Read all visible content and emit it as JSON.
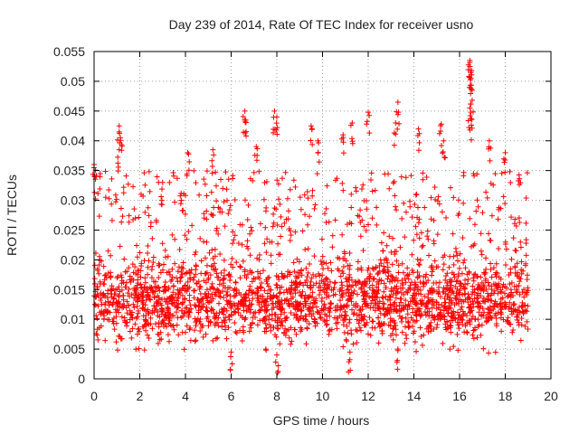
{
  "chart_data": {
    "type": "scatter",
    "title": "Day 239 of 2014, Rate Of TEC Index for receiver usno",
    "xlabel": "GPS time / hours",
    "ylabel": "ROTI / TECUs",
    "xlim": [
      0,
      20
    ],
    "ylim": [
      0,
      0.055
    ],
    "xticks": [
      0,
      2,
      4,
      6,
      8,
      10,
      12,
      14,
      16,
      18,
      20
    ],
    "xtick_labels": [
      "0",
      "2",
      "4",
      "6",
      "8",
      "10",
      "12",
      "14",
      "16",
      "18",
      "20"
    ],
    "yticks": [
      0,
      0.005,
      0.01,
      0.015,
      0.02,
      0.025,
      0.03,
      0.035,
      0.04,
      0.045,
      0.05,
      0.055
    ],
    "ytick_labels": [
      "0",
      "0.005",
      "0.01",
      "0.015",
      "0.02",
      "0.025",
      "0.03",
      "0.035",
      "0.04",
      "0.045",
      "0.05",
      "0.055"
    ],
    "grid": true,
    "marker": "+",
    "color": "#ff0000",
    "x_range_of_data": [
      0,
      19
    ],
    "typical_band": [
      0.006,
      0.025
    ],
    "background_level": 0.013,
    "notable_points": [
      {
        "x": 0.0,
        "y": 0.036
      },
      {
        "x": 1.1,
        "y": 0.0425
      },
      {
        "x": 1.15,
        "y": 0.0405
      },
      {
        "x": 1.1,
        "y": 0.0385
      },
      {
        "x": 3.0,
        "y": 0.033
      },
      {
        "x": 4.1,
        "y": 0.038
      },
      {
        "x": 5.2,
        "y": 0.0385
      },
      {
        "x": 6.6,
        "y": 0.045
      },
      {
        "x": 6.6,
        "y": 0.0435
      },
      {
        "x": 7.1,
        "y": 0.039
      },
      {
        "x": 7.9,
        "y": 0.045
      },
      {
        "x": 8.0,
        "y": 0.044
      },
      {
        "x": 9.5,
        "y": 0.0425
      },
      {
        "x": 9.8,
        "y": 0.04
      },
      {
        "x": 10.9,
        "y": 0.041
      },
      {
        "x": 11.3,
        "y": 0.043
      },
      {
        "x": 12.0,
        "y": 0.0448
      },
      {
        "x": 13.3,
        "y": 0.0465
      },
      {
        "x": 13.2,
        "y": 0.043
      },
      {
        "x": 14.2,
        "y": 0.042
      },
      {
        "x": 15.2,
        "y": 0.0428
      },
      {
        "x": 15.3,
        "y": 0.04
      },
      {
        "x": 16.45,
        "y": 0.0535
      },
      {
        "x": 16.45,
        "y": 0.0525
      },
      {
        "x": 16.5,
        "y": 0.0515
      },
      {
        "x": 16.5,
        "y": 0.0505
      },
      {
        "x": 16.55,
        "y": 0.0485
      },
      {
        "x": 16.45,
        "y": 0.0455
      },
      {
        "x": 16.5,
        "y": 0.0437
      },
      {
        "x": 17.3,
        "y": 0.04
      },
      {
        "x": 18.0,
        "y": 0.038
      },
      {
        "x": 8.0,
        "y": 0.004
      },
      {
        "x": 6.0,
        "y": 0.0045
      },
      {
        "x": 11.2,
        "y": 0.0045
      },
      {
        "x": 13.3,
        "y": 0.005
      }
    ]
  }
}
